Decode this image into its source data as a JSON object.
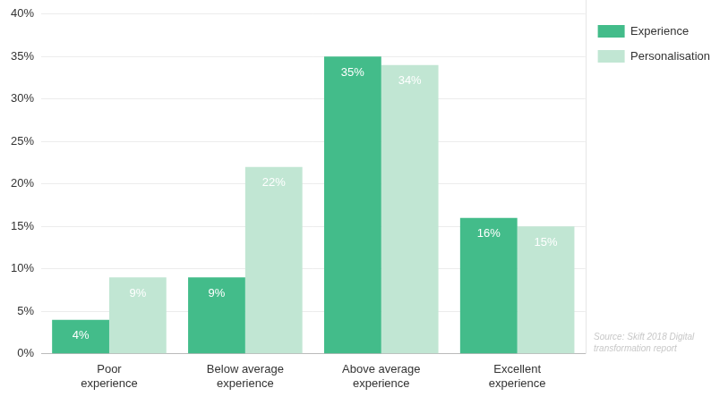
{
  "chart_data": {
    "type": "bar",
    "categories": [
      "Poor experience",
      "Below average experience",
      "Above average experience",
      "Excellent experience"
    ],
    "series": [
      {
        "name": "Experience",
        "color": "#43bc8a",
        "values": [
          4,
          9,
          35,
          16
        ],
        "value_labels": [
          "4%",
          "9%",
          "35%",
          "16%"
        ]
      },
      {
        "name": "Personalisation",
        "color": "#c1e6d3",
        "values": [
          9,
          22,
          34,
          15
        ],
        "value_labels": [
          "9%",
          "22%",
          "34%",
          "15%"
        ]
      }
    ],
    "ylim": [
      0,
      40
    ],
    "yticks": [
      {
        "value": 0,
        "label": "0%"
      },
      {
        "value": 5,
        "label": "5%"
      },
      {
        "value": 10,
        "label": "10%"
      },
      {
        "value": 15,
        "label": "15%"
      },
      {
        "value": 20,
        "label": "20%"
      },
      {
        "value": 25,
        "label": "25%"
      },
      {
        "value": 30,
        "label": "30%"
      },
      {
        "value": 35,
        "label": "35%"
      },
      {
        "value": 40,
        "label": "40%"
      }
    ],
    "grid": true,
    "legend": "top-right",
    "data_labels": true,
    "source": "Source: Skift 2018 Digital transformation report"
  }
}
